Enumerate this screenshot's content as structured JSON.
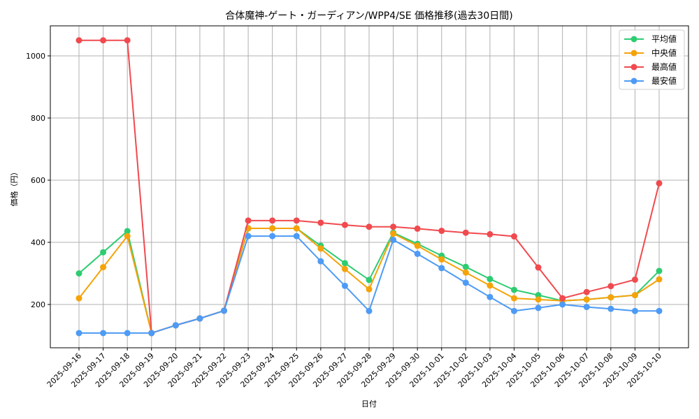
{
  "chart_data": {
    "type": "line",
    "title": "合体魔神-ゲート・ガーディアン/WPP4/SE 価格推移(過去30日間)",
    "xlabel": "日付",
    "ylabel": "価格（円）",
    "ylim": [
      62,
      1096
    ],
    "yticks": [
      200,
      400,
      600,
      800,
      1000
    ],
    "grid": true,
    "legend_position": "upper right",
    "x": [
      "2025-09-16",
      "2025-09-17",
      "2025-09-18",
      "2025-09-19",
      "2025-09-20",
      "2025-09-21",
      "2025-09-22",
      "2025-09-23",
      "2025-09-24",
      "2025-09-25",
      "2025-09-26",
      "2025-09-27",
      "2025-09-28",
      "2025-09-29",
      "2025-09-30",
      "2025-10-01",
      "2025-10-02",
      "2025-10-03",
      "2025-10-04",
      "2025-10-05",
      "2025-10-06",
      "2025-10-07",
      "2025-10-08",
      "2025-10-09",
      "2025-10-10"
    ],
    "series": [
      {
        "name": "平均値",
        "color": "#2ecc71",
        "values": [
          300,
          368,
          436,
          108,
          133,
          155,
          180,
          445,
          445,
          445,
          389,
          333,
          279,
          431,
          395,
          357,
          321,
          282,
          247,
          230,
          212,
          216,
          223,
          230,
          308
        ]
      },
      {
        "name": "中央値",
        "color": "#f5a30a",
        "values": [
          220,
          320,
          420,
          108,
          133,
          155,
          180,
          445,
          445,
          445,
          380,
          314,
          249,
          428,
          389,
          345,
          303,
          261,
          220,
          216,
          212,
          216,
          223,
          230,
          281
        ]
      },
      {
        "name": "最高値",
        "color": "#f04a4f",
        "values": [
          1050,
          1050,
          1050,
          108,
          133,
          155,
          180,
          470,
          470,
          470,
          463,
          456,
          450,
          450,
          444,
          437,
          431,
          426,
          419,
          319,
          220,
          240,
          259,
          280,
          590
        ]
      },
      {
        "name": "最安値",
        "color": "#4d9bf5",
        "values": [
          108,
          108,
          108,
          108,
          133,
          155,
          180,
          420,
          420,
          420,
          339,
          260,
          179,
          408,
          363,
          317,
          270,
          224,
          179,
          189,
          200,
          192,
          186,
          179,
          179
        ]
      }
    ]
  }
}
